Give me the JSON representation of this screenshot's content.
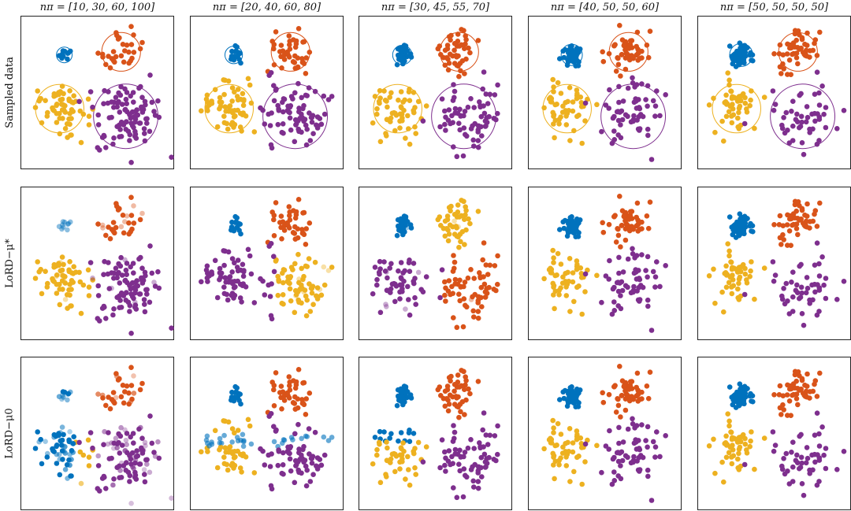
{
  "colors": {
    "blue": "#0072BD",
    "orange": "#D95319",
    "yellow": "#EDB120",
    "purple": "#7E2F8E"
  },
  "columns": [
    {
      "title": "nπ = [10, 30, 60, 100]",
      "n": [
        10,
        30,
        60,
        100
      ]
    },
    {
      "title": "nπ = [20, 40, 60, 80]",
      "n": [
        20,
        40,
        60,
        80
      ]
    },
    {
      "title": "nπ = [30, 45, 55, 70]",
      "n": [
        30,
        45,
        55,
        70
      ]
    },
    {
      "title": "nπ = [40, 50, 50, 60]",
      "n": [
        40,
        50,
        50,
        60
      ]
    },
    {
      "title": "nπ = [50, 50, 50, 50]",
      "n": [
        50,
        50,
        50,
        50
      ]
    }
  ],
  "rows": [
    {
      "label": "Sampled data"
    },
    {
      "label": "LoRD−μ*"
    },
    {
      "label": "LoRD−μ0"
    }
  ],
  "chart_data": {
    "type": "scatter",
    "clusters": [
      {
        "color": "blue",
        "center": [
          0.28,
          0.25
        ],
        "spread": 0.06
      },
      {
        "color": "orange",
        "center": [
          0.65,
          0.23
        ],
        "spread": 0.12
      },
      {
        "color": "yellow",
        "center": [
          0.25,
          0.6
        ],
        "spread": 0.15
      },
      {
        "color": "purple",
        "center": [
          0.68,
          0.65
        ],
        "spread": 0.2
      }
    ],
    "panels_rows": 3,
    "panels_cols": 5,
    "axes_visible": false
  }
}
